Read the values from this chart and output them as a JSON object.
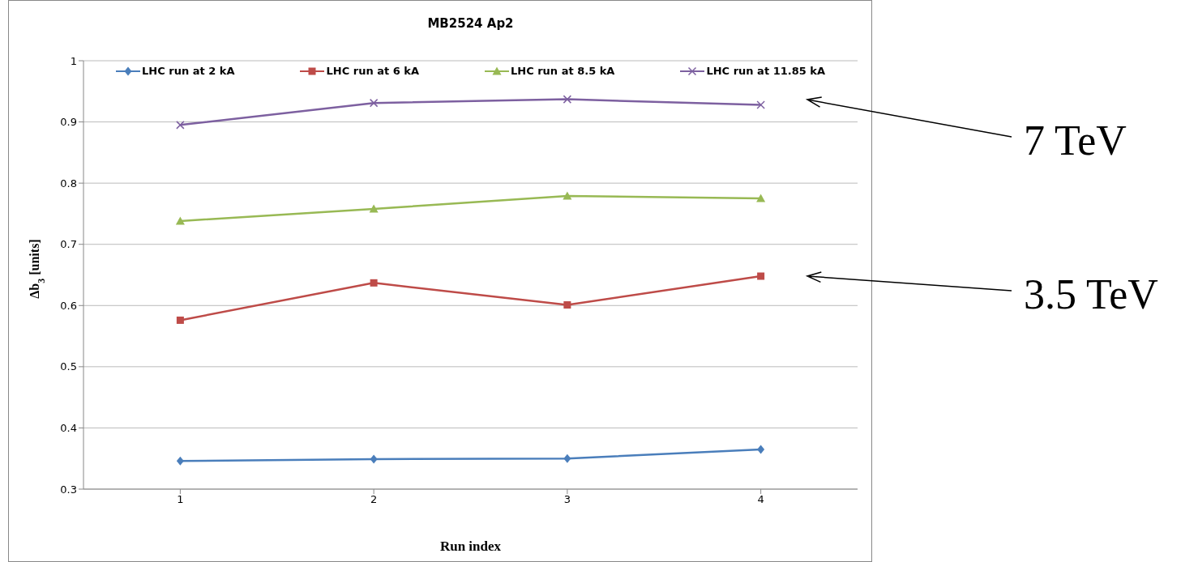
{
  "chart_data": {
    "type": "line",
    "title": "MB2524 Ap2",
    "xlabel": "Run index",
    "ylabel": "Δb$_{3}$ [units]",
    "x": [
      1,
      2,
      3,
      4
    ],
    "xlim": [
      0.5,
      4.5
    ],
    "xticks": [
      1,
      2,
      3,
      4
    ],
    "ylim": [
      0.3,
      1
    ],
    "yticks": [
      0.3,
      0.4,
      0.5,
      0.6,
      0.7,
      0.8,
      0.9,
      1
    ],
    "grid": "y",
    "legend": "top",
    "line_style": "solid",
    "series": [
      {
        "name": "LHC run at 2 kA",
        "color": "#4a7ebb",
        "marker": "diamond",
        "values": [
          0.346,
          0.349,
          0.35,
          0.365
        ]
      },
      {
        "name": "LHC run at 6 kA",
        "color": "#be4b48",
        "marker": "square",
        "values": [
          0.576,
          0.637,
          0.601,
          0.648
        ]
      },
      {
        "name": "LHC run at 8.5 kA",
        "color": "#98b954",
        "marker": "triangle",
        "values": [
          0.738,
          0.758,
          0.779,
          0.775
        ]
      },
      {
        "name": "LHC run at 11.85 kA",
        "color": "#7d60a0",
        "marker": "cross",
        "values": [
          0.895,
          0.931,
          0.937,
          0.928
        ]
      }
    ],
    "annotations": [
      "7 TeV",
      "3.5 TeV"
    ]
  }
}
